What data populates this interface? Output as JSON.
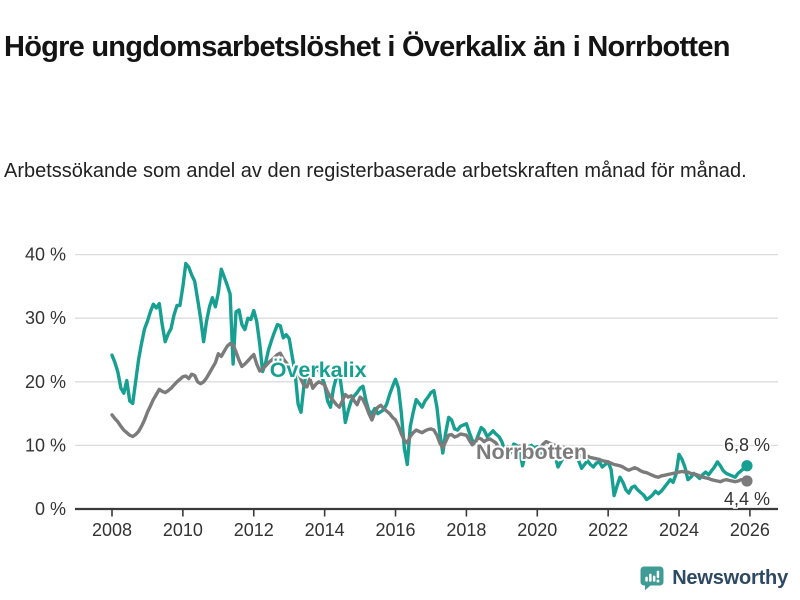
{
  "title": "Högre ungdomsarbetslöshet i Överkalix än i Norrbotten",
  "subtitle": "Arbetssökande som andel av den registerbaserade arbetskraften månad för månad.",
  "branding": {
    "logo_text": "Newsworthy",
    "logo_icon": "bar-chart-speech-bubble-icon",
    "logo_icon_color": "#3f9b94",
    "logo_text_color": "#2e4964"
  },
  "colors": {
    "overkalix": "#17a091",
    "norrbotten": "#7b7b7b",
    "gridline": "#dcdcdc",
    "axis": "#3a3a3a",
    "tick_label": "#333333",
    "title_text": "#141414",
    "subtitle_text": "#222222"
  },
  "chart_data": {
    "type": "line",
    "unit": "%",
    "x_axis": {
      "start_year": 2008,
      "interval": "monthly",
      "tick_years": [
        2008,
        2010,
        2012,
        2014,
        2016,
        2018,
        2020,
        2022,
        2024,
        2026
      ]
    },
    "y_axis": {
      "ticks": [
        0,
        10,
        20,
        30,
        40
      ],
      "tick_suffix": " %",
      "range": [
        0,
        42
      ],
      "grid": true
    },
    "legend_position": "inline-labels",
    "series": [
      {
        "name": "Överkalix",
        "color": "#17a091",
        "end_label": "6,8 %",
        "end_value": 6.8,
        "label_x_year": 2012.45,
        "label_y_value": 20.75,
        "values": [
          24.2,
          23.0,
          21.5,
          19.0,
          18.2,
          20.2,
          17.0,
          16.6,
          20.0,
          23.5,
          26.0,
          28.3,
          29.5,
          31.0,
          32.2,
          31.6,
          32.3,
          29.0,
          26.3,
          27.5,
          28.4,
          30.5,
          32.0,
          32.0,
          35.0,
          38.6,
          38.0,
          36.8,
          35.8,
          33.0,
          30.0,
          26.3,
          29.5,
          31.8,
          33.2,
          31.8,
          34.0,
          37.7,
          36.5,
          35.2,
          33.8,
          22.8,
          31.0,
          31.3,
          29.0,
          28.2,
          30.0,
          29.8,
          31.2,
          29.5,
          26.0,
          21.6,
          23.0,
          25.0,
          26.5,
          27.8,
          29.0,
          28.8,
          26.9,
          27.4,
          26.8,
          24.0,
          21.4,
          16.5,
          15.2,
          19.5,
          21.8,
          22.3,
          21.5,
          22.4,
          21.8,
          20.8,
          19.6,
          17.0,
          16.0,
          19.0,
          20.8,
          21.4,
          18.0,
          13.6,
          15.5,
          17.0,
          17.8,
          18.3,
          19.0,
          19.3,
          17.0,
          15.4,
          15.0,
          15.8,
          15.0,
          15.3,
          15.6,
          16.5,
          18.0,
          19.3,
          20.4,
          19.0,
          15.0,
          9.5,
          7.0,
          13.0,
          15.2,
          17.2,
          16.6,
          16.0,
          17.0,
          17.6,
          18.3,
          18.6,
          16.0,
          12.0,
          8.8,
          12.0,
          14.4,
          14.0,
          12.6,
          12.4,
          13.0,
          13.2,
          13.4,
          12.0,
          10.8,
          10.4,
          11.6,
          12.8,
          12.4,
          11.4,
          11.8,
          12.3,
          11.8,
          11.4,
          10.6,
          9.2,
          8.0,
          9.0,
          10.2,
          10.0,
          9.4,
          6.8,
          8.6,
          9.8,
          10.0,
          9.6,
          9.8,
          9.2,
          8.2,
          9.0,
          9.5,
          8.8,
          8.4,
          6.6,
          7.4,
          8.2,
          7.8,
          8.0,
          8.4,
          8.8,
          7.6,
          6.4,
          7.0,
          7.6,
          7.0,
          6.6,
          7.2,
          7.4,
          6.6,
          7.0,
          7.4,
          6.2,
          2.1,
          3.6,
          5.0,
          4.2,
          3.0,
          2.5,
          3.4,
          3.6,
          3.0,
          2.6,
          2.2,
          1.5,
          1.8,
          2.2,
          2.8,
          2.4,
          2.8,
          3.4,
          4.0,
          4.6,
          4.2,
          5.5,
          8.6,
          7.8,
          6.6,
          4.6,
          5.0,
          5.6,
          5.2,
          4.8,
          5.4,
          5.8,
          5.4,
          6.0,
          6.6,
          7.4,
          6.8,
          6.0,
          5.6,
          5.4,
          5.2,
          5.0,
          5.6,
          6.0,
          6.4,
          6.8
        ]
      },
      {
        "name": "Norrbotten",
        "color": "#7b7b7b",
        "end_label": "4,4 %",
        "end_value": 4.4,
        "label_x_year": 2018.27,
        "label_y_value": 7.86,
        "values": [
          14.8,
          14.2,
          13.7,
          13.0,
          12.4,
          12.0,
          11.6,
          11.4,
          11.7,
          12.2,
          13.0,
          14.0,
          15.2,
          16.2,
          17.2,
          18.0,
          18.8,
          18.5,
          18.3,
          18.6,
          19.0,
          19.5,
          20.0,
          20.4,
          20.8,
          20.9,
          20.5,
          21.2,
          21.0,
          20.0,
          19.7,
          20.0,
          20.6,
          21.4,
          22.2,
          23.0,
          24.4,
          24.0,
          24.8,
          25.6,
          26.0,
          25.8,
          24.7,
          23.4,
          22.4,
          22.8,
          23.3,
          23.8,
          24.3,
          22.8,
          21.7,
          22.0,
          22.5,
          23.0,
          23.4,
          23.8,
          24.3,
          24.5,
          23.6,
          23.0,
          22.4,
          21.4,
          22.6,
          21.6,
          20.4,
          19.4,
          19.2,
          20.5,
          19.0,
          19.6,
          20.0,
          19.8,
          19.5,
          18.4,
          17.6,
          17.0,
          16.4,
          16.0,
          17.0,
          18.0,
          17.6,
          17.8,
          17.0,
          16.4,
          17.6,
          17.2,
          16.2,
          15.0,
          14.0,
          15.2,
          16.0,
          16.3,
          15.8,
          15.4,
          15.0,
          14.4,
          14.0,
          13.0,
          11.8,
          10.8,
          10.4,
          11.4,
          12.0,
          12.4,
          12.2,
          12.0,
          12.3,
          12.5,
          12.6,
          12.4,
          11.6,
          10.4,
          9.6,
          10.6,
          11.6,
          11.7,
          11.3,
          11.5,
          11.8,
          11.7,
          11.6,
          10.8,
          10.1,
          10.6,
          11.2,
          11.0,
          10.6,
          10.9,
          11.0,
          10.7,
          10.4,
          9.6,
          8.4,
          9.0,
          9.8,
          9.5,
          9.3,
          9.6,
          9.9,
          9.5,
          9.2,
          9.4,
          9.2,
          9.0,
          9.2,
          9.6,
          10.2,
          10.6,
          10.4,
          10.2,
          10.0,
          9.8,
          9.6,
          9.7,
          9.4,
          9.2,
          9.0,
          8.8,
          8.5,
          8.3,
          8.2,
          8.3,
          8.1,
          8.0,
          7.9,
          7.8,
          7.6,
          7.5,
          7.4,
          7.2,
          7.0,
          6.9,
          6.8,
          6.6,
          6.3,
          6.1,
          6.3,
          6.5,
          6.3,
          6.0,
          5.8,
          5.7,
          5.5,
          5.3,
          5.1,
          5.0,
          5.2,
          5.3,
          5.4,
          5.5,
          5.6,
          5.7,
          5.8,
          5.9,
          5.8,
          5.8,
          5.6,
          5.5,
          5.4,
          5.2,
          5.0,
          4.9,
          4.8,
          4.6,
          4.5,
          4.4,
          4.3,
          4.5,
          4.6,
          4.5,
          4.4,
          4.3,
          4.4,
          4.6,
          4.5,
          4.4
        ]
      }
    ]
  }
}
